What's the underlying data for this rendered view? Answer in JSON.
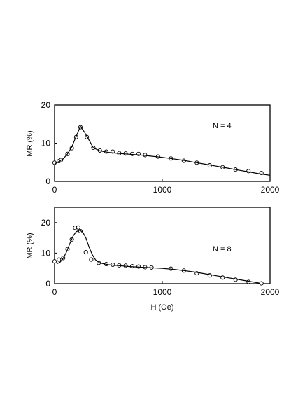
{
  "chart_data": [
    {
      "type": "scatter",
      "annotation": "N = 4",
      "xlabel": "",
      "ylabel": "MR (%)",
      "xlim": [
        0,
        2000
      ],
      "ylim": [
        0,
        20
      ],
      "xticks": [
        "0",
        "1000",
        "2000"
      ],
      "yticks": [
        "0",
        "10",
        "20"
      ],
      "grid": false,
      "series": [
        {
          "style": "markers",
          "x": [
            0,
            40,
            60,
            120,
            160,
            200,
            240,
            300,
            360,
            420,
            480,
            540,
            600,
            660,
            720,
            780,
            840,
            960,
            1080,
            1200,
            1320,
            1440,
            1560,
            1680,
            1800,
            1920
          ],
          "y": [
            4.9,
            5.3,
            5.6,
            7.2,
            8.7,
            11.6,
            14.2,
            11.6,
            8.8,
            8.1,
            7.8,
            7.8,
            7.4,
            7.3,
            7.2,
            7.2,
            6.9,
            6.5,
            6.0,
            5.4,
            4.9,
            4.2,
            3.7,
            3.1,
            2.7,
            2.2
          ]
        },
        {
          "style": "line",
          "x": [
            0,
            40,
            80,
            120,
            160,
            200,
            240,
            280,
            320,
            360,
            420,
            500,
            600,
            700,
            800,
            900,
            1000,
            1100,
            1200,
            1300,
            1400,
            1500,
            1600,
            1700,
            1800,
            1900,
            2000
          ],
          "y": [
            4.6,
            5.2,
            5.9,
            7.2,
            9.0,
            11.8,
            14.4,
            12.8,
            10.8,
            8.8,
            8.0,
            7.6,
            7.3,
            7.1,
            6.9,
            6.6,
            6.3,
            5.9,
            5.5,
            5.0,
            4.5,
            4.0,
            3.5,
            3.0,
            2.5,
            2.0,
            1.6
          ]
        }
      ]
    },
    {
      "type": "scatter",
      "annotation": "N = 8",
      "xlabel": "H (Oe)",
      "ylabel": "MR (%)",
      "xlim": [
        0,
        2000
      ],
      "ylim": [
        0,
        25
      ],
      "xticks": [
        "0",
        "1000",
        "2000"
      ],
      "yticks": [
        "0",
        "10",
        "20"
      ],
      "grid": false,
      "series": [
        {
          "style": "markers",
          "x": [
            0,
            40,
            80,
            120,
            160,
            190,
            220,
            240,
            290,
            340,
            410,
            480,
            540,
            600,
            660,
            720,
            780,
            840,
            900,
            1080,
            1200,
            1320,
            1440,
            1560,
            1680,
            1800,
            1920
          ],
          "y": [
            7.3,
            7.9,
            8.4,
            11.3,
            14.5,
            18.3,
            18.4,
            17.2,
            10.3,
            7.9,
            6.8,
            6.4,
            6.2,
            6.0,
            5.9,
            5.7,
            5.6,
            5.4,
            5.3,
            4.9,
            4.3,
            3.4,
            2.7,
            2.0,
            1.3,
            0.6,
            0.1
          ]
        },
        {
          "style": "line",
          "x": [
            20,
            50,
            80,
            110,
            140,
            170,
            200,
            230,
            260,
            290,
            320,
            350,
            380,
            420,
            500,
            600,
            700,
            800,
            900,
            1000,
            1100,
            1200,
            1300,
            1400,
            1500,
            1600,
            1700,
            1800,
            1900
          ],
          "y": [
            6.5,
            7.0,
            8.3,
            10.3,
            13.0,
            15.5,
            17.0,
            17.5,
            17.0,
            15.0,
            12.0,
            9.5,
            7.8,
            6.8,
            6.2,
            5.9,
            5.6,
            5.4,
            5.2,
            5.0,
            4.7,
            4.3,
            3.8,
            3.2,
            2.6,
            2.0,
            1.4,
            0.8,
            0.2
          ]
        }
      ]
    }
  ]
}
